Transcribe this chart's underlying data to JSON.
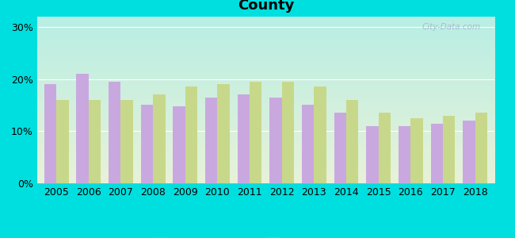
{
  "years": [
    2005,
    2006,
    2007,
    2008,
    2009,
    2010,
    2011,
    2012,
    2013,
    2014,
    2015,
    2016,
    2017,
    2018
  ],
  "boone_county": [
    19.0,
    21.0,
    19.5,
    15.0,
    14.8,
    16.5,
    17.0,
    16.5,
    15.0,
    13.5,
    11.0,
    11.0,
    11.5,
    12.0
  ],
  "missouri_avg": [
    16.0,
    16.0,
    16.0,
    17.0,
    18.5,
    19.0,
    19.5,
    19.5,
    18.5,
    16.0,
    13.5,
    12.5,
    13.0,
    13.5
  ],
  "boone_color": "#C9A8E0",
  "missouri_color": "#C8D88A",
  "bg_outer": "#00DFDF",
  "bg_plot_topleft": "#B8EEE4",
  "bg_plot_bottomright": "#E8F2D8",
  "yticks": [
    0,
    10,
    20,
    30
  ],
  "ylim": [
    0,
    32
  ],
  "title_fontsize": 13,
  "tick_fontsize": 9,
  "legend_fontsize": 10,
  "bar_width": 0.38,
  "watermark": "City-Data.com"
}
